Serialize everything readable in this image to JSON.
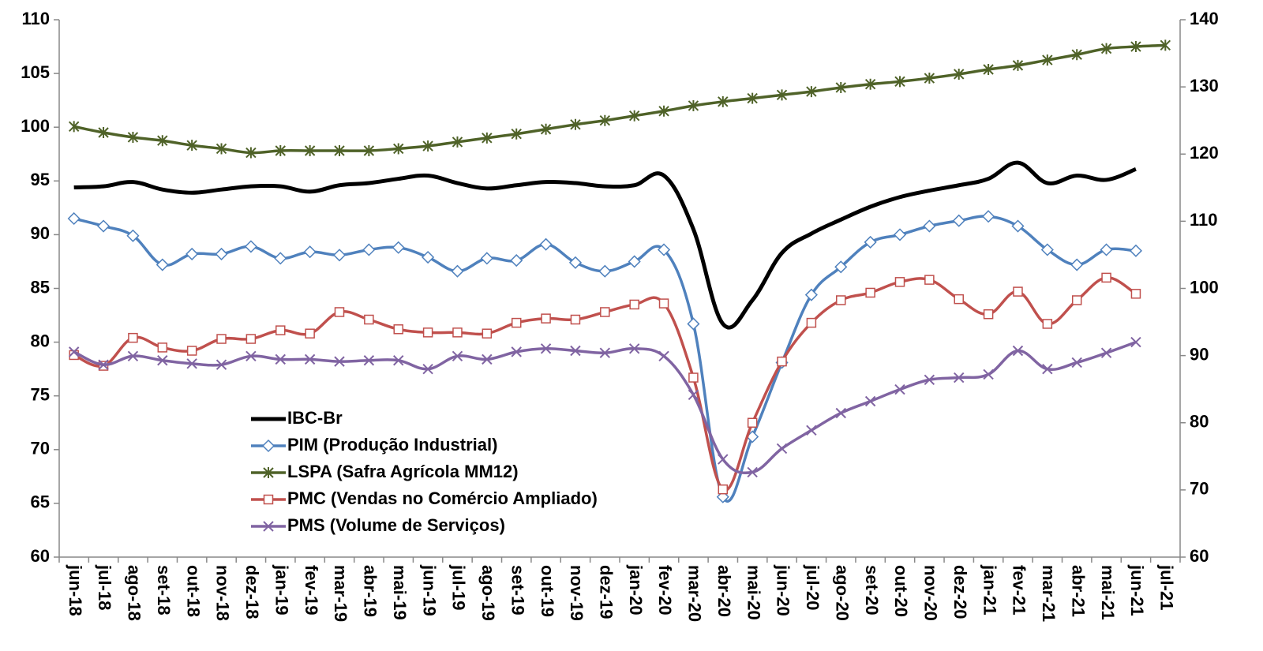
{
  "chart_data": {
    "type": "line",
    "categories": [
      "jun-18",
      "jul-18",
      "ago-18",
      "set-18",
      "out-18",
      "nov-18",
      "dez-18",
      "jan-19",
      "fev-19",
      "mar-19",
      "abr-19",
      "mai-19",
      "jun-19",
      "jul-19",
      "ago-19",
      "set-19",
      "out-19",
      "nov-19",
      "dez-19",
      "jan-20",
      "fev-20",
      "mar-20",
      "abr-20",
      "mai-20",
      "jun-20",
      "jul-20",
      "ago-20",
      "set-20",
      "out-20",
      "nov-20",
      "dez-20",
      "jan-21",
      "fev-21",
      "mar-21",
      "abr-21",
      "mai-21",
      "jun-21",
      "jul-21"
    ],
    "ylim": [
      60,
      110
    ],
    "yticks": [
      60,
      65,
      70,
      75,
      80,
      85,
      90,
      95,
      100,
      105,
      110
    ],
    "y2lim": [
      60,
      140
    ],
    "y2ticks": [
      60,
      70,
      80,
      90,
      100,
      110,
      120,
      130,
      140
    ],
    "grid": false,
    "legend": "lower left",
    "series": [
      {
        "name": "IBC-Br",
        "color": "#000000",
        "marker": "none",
        "values": [
          94.4,
          94.5,
          94.9,
          94.2,
          93.9,
          94.2,
          94.5,
          94.5,
          94.0,
          94.6,
          94.8,
          95.2,
          95.5,
          94.8,
          94.3,
          94.6,
          94.9,
          94.8,
          94.5,
          94.6,
          95.5,
          90.5,
          81.7,
          83.9,
          88.3,
          90.1,
          91.4,
          92.6,
          93.5,
          94.1,
          94.6,
          95.2,
          96.7,
          94.8,
          95.5,
          95.1,
          96.1,
          null
        ]
      },
      {
        "name": "PIM (Produção Industrial)",
        "color": "#4f81bd",
        "marker": "diamond",
        "values": [
          91.5,
          90.8,
          89.9,
          87.2,
          88.2,
          88.2,
          88.9,
          87.8,
          88.4,
          88.1,
          88.6,
          88.8,
          87.9,
          86.6,
          87.8,
          87.6,
          89.1,
          87.4,
          86.6,
          87.5,
          88.6,
          81.7,
          65.6,
          71.2,
          78.1,
          84.4,
          87.0,
          89.3,
          90.0,
          90.8,
          91.3,
          91.7,
          90.8,
          88.6,
          87.2,
          88.6,
          88.5,
          null
        ]
      },
      {
        "name": "LSPA (Safra Agrícola MM12)",
        "color": "#4f6228",
        "marker": "star",
        "axis": "y2",
        "values": [
          124.1,
          123.2,
          122.5,
          122.0,
          121.3,
          120.8,
          120.2,
          120.5,
          120.5,
          120.5,
          120.5,
          120.8,
          121.2,
          121.8,
          122.4,
          123.0,
          123.7,
          124.4,
          125.0,
          125.7,
          126.4,
          127.2,
          127.8,
          128.3,
          128.8,
          129.3,
          129.9,
          130.4,
          130.8,
          131.3,
          131.9,
          132.6,
          133.2,
          134.0,
          134.8,
          135.7,
          136.0,
          136.2
        ]
      },
      {
        "name": "PMC (Vendas no Comércio Ampliado)",
        "color": "#c0504d",
        "marker": "square",
        "values": [
          78.8,
          77.8,
          80.4,
          79.5,
          79.2,
          80.3,
          80.3,
          81.1,
          80.8,
          82.8,
          82.1,
          81.2,
          80.9,
          80.9,
          80.8,
          81.8,
          82.2,
          82.1,
          82.8,
          83.5,
          83.6,
          76.7,
          66.3,
          72.5,
          78.2,
          81.8,
          83.9,
          84.6,
          85.6,
          85.8,
          84.0,
          82.6,
          84.7,
          81.7,
          83.9,
          86.0,
          84.5,
          null
        ]
      },
      {
        "name": "PMS (Volume de Serviços)",
        "color": "#8064a2",
        "marker": "x",
        "values": [
          79.1,
          77.9,
          78.7,
          78.3,
          78.0,
          77.9,
          78.7,
          78.4,
          78.4,
          78.2,
          78.3,
          78.3,
          77.5,
          78.7,
          78.4,
          79.1,
          79.4,
          79.2,
          79.0,
          79.4,
          78.7,
          75.1,
          69.1,
          67.9,
          70.1,
          71.8,
          73.4,
          74.5,
          75.6,
          76.5,
          76.7,
          77.0,
          79.2,
          77.5,
          78.1,
          79.0,
          80.0,
          null
        ]
      }
    ]
  }
}
